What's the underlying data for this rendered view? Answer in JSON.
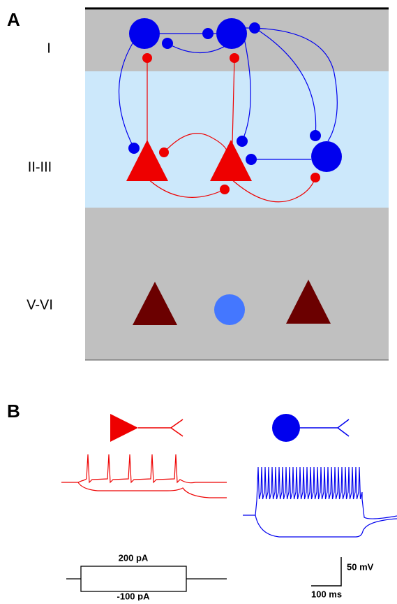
{
  "panel_a": {
    "label": "A",
    "layers": [
      "I",
      "II-III",
      "V-VI"
    ]
  },
  "panel_b": {
    "label": "B",
    "stimulus": {
      "high": "200 pA",
      "low": "-100 pA"
    },
    "scale": {
      "voltage": "50 mV",
      "time": "100 ms"
    }
  }
}
